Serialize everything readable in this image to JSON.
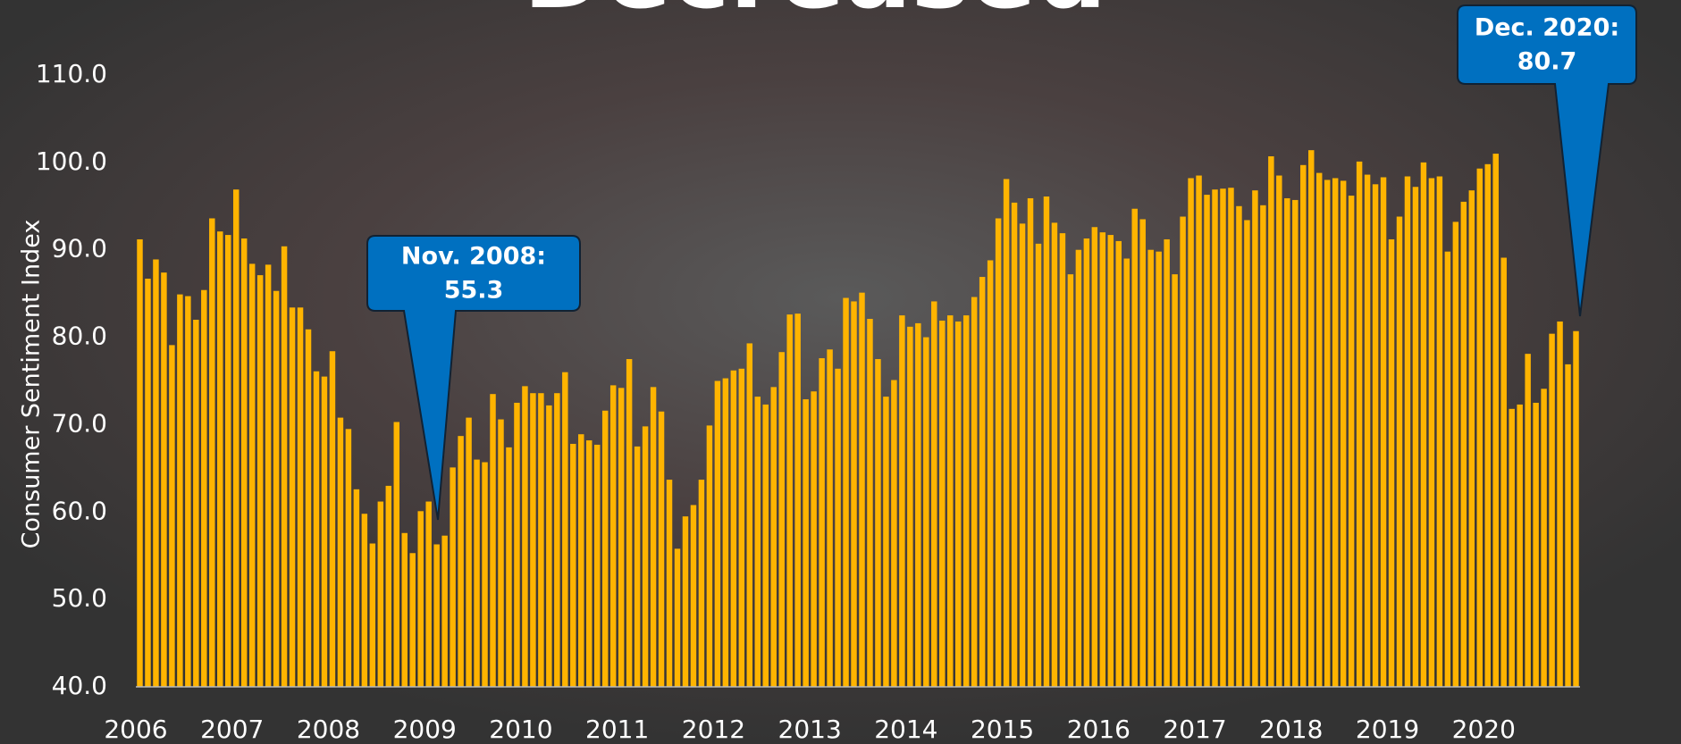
{
  "chart_data": {
    "type": "bar",
    "title": "Decreased",
    "y_label": "Consumer Sentiment Index",
    "color": "#ffb400",
    "categories": [
      "2006",
      null,
      null,
      null,
      null,
      null,
      null,
      null,
      null,
      null,
      null,
      null,
      "2007",
      null,
      null,
      null,
      null,
      null,
      null,
      null,
      null,
      null,
      null,
      null,
      "2008",
      null,
      null,
      null,
      null,
      null,
      null,
      null,
      null,
      null,
      null,
      null,
      "2009",
      null,
      null,
      null,
      null,
      null,
      null,
      null,
      null,
      null,
      null,
      null,
      "2010",
      null,
      null,
      null,
      null,
      null,
      null,
      null,
      null,
      null,
      null,
      null,
      "2011",
      null,
      null,
      null,
      null,
      null,
      null,
      null,
      null,
      null,
      null,
      null,
      "2012",
      null,
      null,
      null,
      null,
      null,
      null,
      null,
      null,
      null,
      null,
      null,
      "2013",
      null,
      null,
      null,
      null,
      null,
      null,
      null,
      null,
      null,
      null,
      null,
      "2014",
      null,
      null,
      null,
      null,
      null,
      null,
      null,
      null,
      null,
      null,
      null,
      "2015",
      null,
      null,
      null,
      null,
      null,
      null,
      null,
      null,
      null,
      null,
      null,
      "2016",
      null,
      null,
      null,
      null,
      null,
      null,
      null,
      null,
      null,
      null,
      null,
      "2017",
      null,
      null,
      null,
      null,
      null,
      null,
      null,
      null,
      null,
      null,
      null,
      "2018",
      null,
      null,
      null,
      null,
      null,
      null,
      null,
      null,
      null,
      null,
      null,
      "2019",
      null,
      null,
      null,
      null,
      null,
      null,
      null,
      null,
      null,
      null,
      null,
      "2020",
      null,
      null,
      null,
      null,
      null,
      null,
      null,
      null,
      null,
      null,
      null
    ],
    "values": [
      91.2,
      86.7,
      88.9,
      87.4,
      79.1,
      84.9,
      84.7,
      82.0,
      85.4,
      93.6,
      92.1,
      91.7,
      96.9,
      91.3,
      88.4,
      87.1,
      88.3,
      85.3,
      90.4,
      83.4,
      83.4,
      80.9,
      76.1,
      75.5,
      78.4,
      70.8,
      69.5,
      62.6,
      59.8,
      56.4,
      61.2,
      63.0,
      70.3,
      57.6,
      55.3,
      60.1,
      61.2,
      56.3,
      57.3,
      65.1,
      68.7,
      70.8,
      66.0,
      65.7,
      73.5,
      70.6,
      67.4,
      72.5,
      74.4,
      73.6,
      73.6,
      72.2,
      73.6,
      76.0,
      67.8,
      68.9,
      68.2,
      67.7,
      71.6,
      74.5,
      74.2,
      77.5,
      67.5,
      69.8,
      74.3,
      71.5,
      63.7,
      55.8,
      59.5,
      60.8,
      63.7,
      69.9,
      75.0,
      75.3,
      76.2,
      76.4,
      79.3,
      73.2,
      72.3,
      74.3,
      78.3,
      82.6,
      82.7,
      72.9,
      73.8,
      77.6,
      78.6,
      76.4,
      84.5,
      84.1,
      85.1,
      82.1,
      77.5,
      73.2,
      75.1,
      82.5,
      81.2,
      81.6,
      80.0,
      84.1,
      81.9,
      82.5,
      81.8,
      82.5,
      84.6,
      86.9,
      88.8,
      93.6,
      98.1,
      95.4,
      93.0,
      95.9,
      90.7,
      96.1,
      93.1,
      91.9,
      87.2,
      90.0,
      91.3,
      92.6,
      92.0,
      91.7,
      91.0,
      89.0,
      94.7,
      93.5,
      90.0,
      89.8,
      91.2,
      87.2,
      93.8,
      98.2,
      98.5,
      96.3,
      96.9,
      97.0,
      97.1,
      95.0,
      93.4,
      96.8,
      95.1,
      100.7,
      98.5,
      95.9,
      95.7,
      99.7,
      101.4,
      98.8,
      98.0,
      98.2,
      97.9,
      96.2,
      100.1,
      98.6,
      97.5,
      98.3,
      91.2,
      93.8,
      98.4,
      97.2,
      100.0,
      98.2,
      98.4,
      89.8,
      93.2,
      95.5,
      96.8,
      99.3,
      99.8,
      101.0,
      89.1,
      71.8,
      72.3,
      78.1,
      72.5,
      74.1,
      80.4,
      81.8,
      76.9,
      80.7
    ],
    "ylim": [
      40,
      110
    ],
    "yticks": [
      {
        "value": 40,
        "label": "40.0"
      },
      {
        "value": 50,
        "label": "50.0"
      },
      {
        "value": 60,
        "label": "60.0"
      },
      {
        "value": 70,
        "label": "70.0"
      },
      {
        "value": 80,
        "label": "80.0"
      },
      {
        "value": 90,
        "label": "90.0"
      },
      {
        "value": 100,
        "label": "100.0"
      },
      {
        "value": 110,
        "label": "110.0"
      }
    ],
    "grid": false,
    "annotations": [
      {
        "text": [
          "Nov. 2008:",
          "55.3"
        ]
      },
      {
        "text": [
          "Dec. 2020:",
          "80.7"
        ]
      }
    ]
  }
}
